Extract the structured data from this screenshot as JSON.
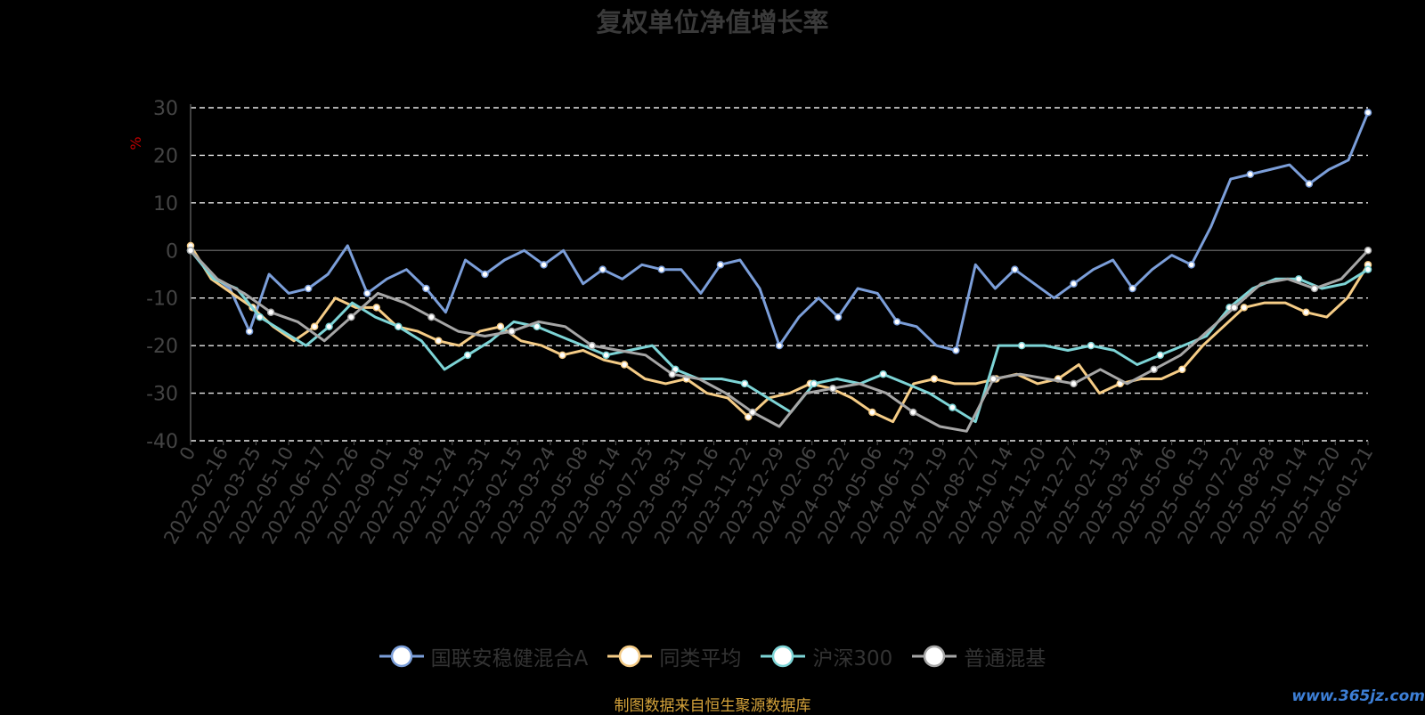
{
  "chart_data": {
    "type": "line",
    "title": "复权单位净值增长率",
    "ylabel": "%",
    "ylim": [
      -40,
      30
    ],
    "yticks": [
      -40,
      -30,
      -20,
      -10,
      0,
      10,
      20,
      30
    ],
    "grid": true,
    "legend_position": "bottom",
    "x_tick_labels": [
      "0",
      "2022-02-16",
      "2022-03-25",
      "2022-05-10",
      "2022-06-17",
      "2022-07-26",
      "2022-09-01",
      "2022-10-18",
      "2022-11-24",
      "2022-12-31",
      "2023-02-15",
      "2023-03-24",
      "2023-05-08",
      "2023-06-14",
      "2023-07-25",
      "2023-08-31",
      "2023-10-16",
      "2023-11-22",
      "2023-12-29",
      "2024-02-06",
      "2024-03-22",
      "2024-05-06",
      "2024-06-13",
      "2024-07-19",
      "2024-08-27",
      "2024-10-14",
      "2024-11-20",
      "2024-12-27",
      "2025-02-13",
      "2025-03-24",
      "2025-05-06",
      "2025-06-13",
      "2025-07-22",
      "2025-08-28",
      "2025-10-14",
      "2025-11-20",
      "2026-01-21"
    ],
    "series": [
      {
        "name": "国联安稳健混合A",
        "color": "#7b9ed9",
        "values": [
          0,
          -5,
          -8,
          -17,
          -5,
          -9,
          -8,
          -5,
          1,
          -9,
          -6,
          -4,
          -8,
          -13,
          -2,
          -5,
          -2,
          0,
          -3,
          0,
          -7,
          -4,
          -6,
          -3,
          -4,
          -4,
          -9,
          -3,
          -2,
          -8,
          -20,
          -14,
          -10,
          -14,
          -8,
          -9,
          -15,
          -16,
          -20,
          -21,
          -3,
          -8,
          -4,
          -7,
          -10,
          -7,
          -4,
          -2,
          -8,
          -4,
          -1,
          -3,
          5,
          15,
          16,
          17,
          18,
          14,
          17,
          19,
          29
        ]
      },
      {
        "name": "同类平均",
        "color": "#f5cc86",
        "values": [
          1,
          -6,
          -9,
          -12,
          -16,
          -19,
          -16,
          -10,
          -12,
          -12,
          -16,
          -17,
          -19,
          -20,
          -17,
          -16,
          -19,
          -20,
          -22,
          -21,
          -23,
          -24,
          -27,
          -28,
          -27,
          -30,
          -31,
          -35,
          -31,
          -30,
          -28,
          -29,
          -31,
          -34,
          -36,
          -28,
          -27,
          -28,
          -28,
          -27,
          -26,
          -28,
          -27,
          -24,
          -30,
          -28,
          -27,
          -27,
          -25,
          -20,
          -16,
          -12,
          -11,
          -11,
          -13,
          -14,
          -10,
          -3
        ]
      },
      {
        "name": "沪深300",
        "color": "#7dd4d6",
        "values": [
          0,
          -6,
          -8,
          -14,
          -17,
          -20,
          -16,
          -11,
          -14,
          -16,
          -19,
          -25,
          -22,
          -19,
          -15,
          -16,
          -18,
          -20,
          -22,
          -21,
          -20,
          -25,
          -27,
          -27,
          -28,
          -31,
          -34,
          -28,
          -27,
          -28,
          -26,
          -28,
          -30,
          -33,
          -36,
          -20,
          -20,
          -20,
          -21,
          -20,
          -21,
          -24,
          -22,
          -20,
          -18,
          -12,
          -8,
          -6,
          -6,
          -8,
          -7,
          -4
        ]
      },
      {
        "name": "普通混基",
        "color": "#a6a6a6",
        "values": [
          0,
          -6,
          -9,
          -13,
          -15,
          -19,
          -14,
          -9,
          -11,
          -14,
          -17,
          -18,
          -17,
          -15,
          -16,
          -20,
          -21,
          -22,
          -26,
          -27,
          -30,
          -34,
          -37,
          -30,
          -29,
          -28,
          -30,
          -34,
          -37,
          -38,
          -27,
          -26,
          -27,
          -28,
          -25,
          -28,
          -25,
          -22,
          -17,
          -12,
          -7,
          -6,
          -8,
          -6,
          0
        ]
      }
    ]
  },
  "source_note": "制图数据来自恒生聚源数据库",
  "watermark": "www.365jz.com"
}
